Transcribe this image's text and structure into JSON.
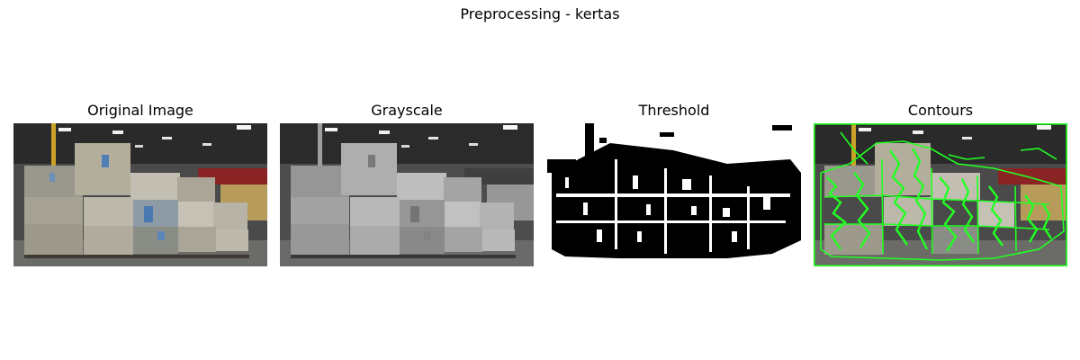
{
  "figure": {
    "title": "Preprocessing - kertas"
  },
  "panels": [
    {
      "title": "Original Image"
    },
    {
      "title": "Grayscale"
    },
    {
      "title": "Threshold"
    },
    {
      "title": "Contours"
    }
  ],
  "colors": {
    "background": "#ffffff",
    "contour_green": "#22ff22",
    "warehouse_wall_red": "#8a2424",
    "floor_gray": "#6b6b68"
  }
}
